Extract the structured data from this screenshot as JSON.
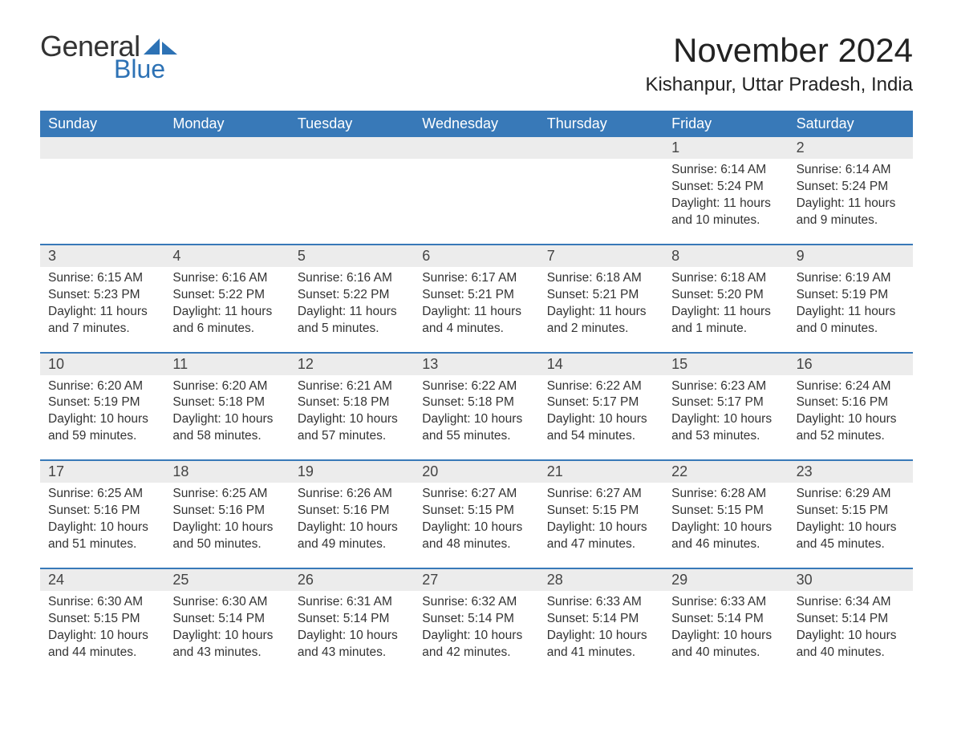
{
  "brand": {
    "text_general": "General",
    "text_blue": "Blue",
    "sail_color": "#2d72b5"
  },
  "title": "November 2024",
  "location": "Kishanpur, Uttar Pradesh, India",
  "colors": {
    "header_bg": "#3879b8",
    "header_text": "#ffffff",
    "daynum_bg": "#ececec",
    "row_divider": "#3879b8",
    "body_text": "#333333",
    "page_bg": "#ffffff"
  },
  "weekdays": [
    "Sunday",
    "Monday",
    "Tuesday",
    "Wednesday",
    "Thursday",
    "Friday",
    "Saturday"
  ],
  "weeks": [
    [
      {
        "blank": true
      },
      {
        "blank": true
      },
      {
        "blank": true
      },
      {
        "blank": true
      },
      {
        "blank": true
      },
      {
        "day": "1",
        "sunrise": "Sunrise: 6:14 AM",
        "sunset": "Sunset: 5:24 PM",
        "daylight": "Daylight: 11 hours and 10 minutes."
      },
      {
        "day": "2",
        "sunrise": "Sunrise: 6:14 AM",
        "sunset": "Sunset: 5:24 PM",
        "daylight": "Daylight: 11 hours and 9 minutes."
      }
    ],
    [
      {
        "day": "3",
        "sunrise": "Sunrise: 6:15 AM",
        "sunset": "Sunset: 5:23 PM",
        "daylight": "Daylight: 11 hours and 7 minutes."
      },
      {
        "day": "4",
        "sunrise": "Sunrise: 6:16 AM",
        "sunset": "Sunset: 5:22 PM",
        "daylight": "Daylight: 11 hours and 6 minutes."
      },
      {
        "day": "5",
        "sunrise": "Sunrise: 6:16 AM",
        "sunset": "Sunset: 5:22 PM",
        "daylight": "Daylight: 11 hours and 5 minutes."
      },
      {
        "day": "6",
        "sunrise": "Sunrise: 6:17 AM",
        "sunset": "Sunset: 5:21 PM",
        "daylight": "Daylight: 11 hours and 4 minutes."
      },
      {
        "day": "7",
        "sunrise": "Sunrise: 6:18 AM",
        "sunset": "Sunset: 5:21 PM",
        "daylight": "Daylight: 11 hours and 2 minutes."
      },
      {
        "day": "8",
        "sunrise": "Sunrise: 6:18 AM",
        "sunset": "Sunset: 5:20 PM",
        "daylight": "Daylight: 11 hours and 1 minute."
      },
      {
        "day": "9",
        "sunrise": "Sunrise: 6:19 AM",
        "sunset": "Sunset: 5:19 PM",
        "daylight": "Daylight: 11 hours and 0 minutes."
      }
    ],
    [
      {
        "day": "10",
        "sunrise": "Sunrise: 6:20 AM",
        "sunset": "Sunset: 5:19 PM",
        "daylight": "Daylight: 10 hours and 59 minutes."
      },
      {
        "day": "11",
        "sunrise": "Sunrise: 6:20 AM",
        "sunset": "Sunset: 5:18 PM",
        "daylight": "Daylight: 10 hours and 58 minutes."
      },
      {
        "day": "12",
        "sunrise": "Sunrise: 6:21 AM",
        "sunset": "Sunset: 5:18 PM",
        "daylight": "Daylight: 10 hours and 57 minutes."
      },
      {
        "day": "13",
        "sunrise": "Sunrise: 6:22 AM",
        "sunset": "Sunset: 5:18 PM",
        "daylight": "Daylight: 10 hours and 55 minutes."
      },
      {
        "day": "14",
        "sunrise": "Sunrise: 6:22 AM",
        "sunset": "Sunset: 5:17 PM",
        "daylight": "Daylight: 10 hours and 54 minutes."
      },
      {
        "day": "15",
        "sunrise": "Sunrise: 6:23 AM",
        "sunset": "Sunset: 5:17 PM",
        "daylight": "Daylight: 10 hours and 53 minutes."
      },
      {
        "day": "16",
        "sunrise": "Sunrise: 6:24 AM",
        "sunset": "Sunset: 5:16 PM",
        "daylight": "Daylight: 10 hours and 52 minutes."
      }
    ],
    [
      {
        "day": "17",
        "sunrise": "Sunrise: 6:25 AM",
        "sunset": "Sunset: 5:16 PM",
        "daylight": "Daylight: 10 hours and 51 minutes."
      },
      {
        "day": "18",
        "sunrise": "Sunrise: 6:25 AM",
        "sunset": "Sunset: 5:16 PM",
        "daylight": "Daylight: 10 hours and 50 minutes."
      },
      {
        "day": "19",
        "sunrise": "Sunrise: 6:26 AM",
        "sunset": "Sunset: 5:16 PM",
        "daylight": "Daylight: 10 hours and 49 minutes."
      },
      {
        "day": "20",
        "sunrise": "Sunrise: 6:27 AM",
        "sunset": "Sunset: 5:15 PM",
        "daylight": "Daylight: 10 hours and 48 minutes."
      },
      {
        "day": "21",
        "sunrise": "Sunrise: 6:27 AM",
        "sunset": "Sunset: 5:15 PM",
        "daylight": "Daylight: 10 hours and 47 minutes."
      },
      {
        "day": "22",
        "sunrise": "Sunrise: 6:28 AM",
        "sunset": "Sunset: 5:15 PM",
        "daylight": "Daylight: 10 hours and 46 minutes."
      },
      {
        "day": "23",
        "sunrise": "Sunrise: 6:29 AM",
        "sunset": "Sunset: 5:15 PM",
        "daylight": "Daylight: 10 hours and 45 minutes."
      }
    ],
    [
      {
        "day": "24",
        "sunrise": "Sunrise: 6:30 AM",
        "sunset": "Sunset: 5:15 PM",
        "daylight": "Daylight: 10 hours and 44 minutes."
      },
      {
        "day": "25",
        "sunrise": "Sunrise: 6:30 AM",
        "sunset": "Sunset: 5:14 PM",
        "daylight": "Daylight: 10 hours and 43 minutes."
      },
      {
        "day": "26",
        "sunrise": "Sunrise: 6:31 AM",
        "sunset": "Sunset: 5:14 PM",
        "daylight": "Daylight: 10 hours and 43 minutes."
      },
      {
        "day": "27",
        "sunrise": "Sunrise: 6:32 AM",
        "sunset": "Sunset: 5:14 PM",
        "daylight": "Daylight: 10 hours and 42 minutes."
      },
      {
        "day": "28",
        "sunrise": "Sunrise: 6:33 AM",
        "sunset": "Sunset: 5:14 PM",
        "daylight": "Daylight: 10 hours and 41 minutes."
      },
      {
        "day": "29",
        "sunrise": "Sunrise: 6:33 AM",
        "sunset": "Sunset: 5:14 PM",
        "daylight": "Daylight: 10 hours and 40 minutes."
      },
      {
        "day": "30",
        "sunrise": "Sunrise: 6:34 AM",
        "sunset": "Sunset: 5:14 PM",
        "daylight": "Daylight: 10 hours and 40 minutes."
      }
    ]
  ]
}
